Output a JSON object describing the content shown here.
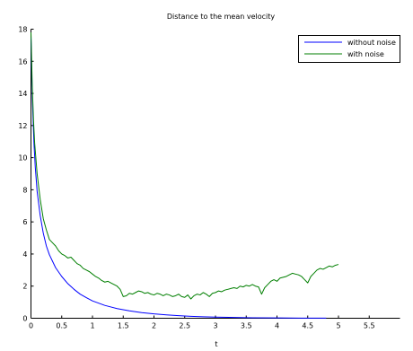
{
  "chart_data": {
    "type": "line",
    "title": "Distance to the mean velocity",
    "xlabel": "t",
    "ylabel": "",
    "xlim": [
      0,
      6
    ],
    "ylim": [
      0,
      18
    ],
    "x_ticks": [
      0,
      0.5,
      1,
      1.5,
      2,
      2.5,
      3,
      3.5,
      4,
      4.5,
      5,
      5.5
    ],
    "y_ticks": [
      0,
      2,
      4,
      6,
      8,
      10,
      12,
      14,
      16,
      18
    ],
    "grid": false,
    "legend_position": "top-right",
    "series": [
      {
        "name": "without noise",
        "color": "#0000ff",
        "x": [
          0.0,
          0.01,
          0.02,
          0.03,
          0.05,
          0.07,
          0.1,
          0.15,
          0.2,
          0.25,
          0.3,
          0.4,
          0.5,
          0.6,
          0.7,
          0.8,
          0.9,
          1.0,
          1.2,
          1.4,
          1.6,
          1.8,
          2.0,
          2.2,
          2.4,
          2.6,
          2.8,
          3.0,
          3.3,
          3.6,
          4.0,
          4.4,
          4.8
        ],
        "values": [
          17.5,
          15.6,
          14.1,
          12.8,
          10.8,
          9.4,
          7.9,
          6.4,
          5.3,
          4.5,
          3.95,
          3.15,
          2.6,
          2.15,
          1.8,
          1.5,
          1.28,
          1.08,
          0.8,
          0.6,
          0.46,
          0.35,
          0.27,
          0.21,
          0.16,
          0.12,
          0.09,
          0.07,
          0.05,
          0.03,
          0.02,
          0.01,
          0.01
        ]
      },
      {
        "name": "with noise",
        "color": "#007f00",
        "x": [
          0.0,
          0.01,
          0.02,
          0.04,
          0.06,
          0.1,
          0.15,
          0.2,
          0.25,
          0.3,
          0.35,
          0.4,
          0.45,
          0.5,
          0.55,
          0.6,
          0.65,
          0.7,
          0.75,
          0.8,
          0.85,
          0.9,
          0.95,
          1.0,
          1.05,
          1.1,
          1.15,
          1.2,
          1.25,
          1.3,
          1.35,
          1.4,
          1.45,
          1.5,
          1.55,
          1.6,
          1.65,
          1.7,
          1.75,
          1.8,
          1.85,
          1.9,
          1.95,
          2.0,
          2.05,
          2.1,
          2.15,
          2.2,
          2.25,
          2.3,
          2.35,
          2.4,
          2.45,
          2.5,
          2.55,
          2.6,
          2.65,
          2.7,
          2.75,
          2.8,
          2.85,
          2.9,
          2.95,
          3.0,
          3.05,
          3.1,
          3.15,
          3.2,
          3.25,
          3.3,
          3.35,
          3.4,
          3.45,
          3.5,
          3.55,
          3.6,
          3.65,
          3.7,
          3.75,
          3.8,
          3.85,
          3.9,
          3.95,
          4.0,
          4.05,
          4.1,
          4.15,
          4.2,
          4.25,
          4.3,
          4.35,
          4.4,
          4.45,
          4.5,
          4.55,
          4.6,
          4.65,
          4.7,
          4.75,
          4.8,
          4.85,
          4.9,
          4.95,
          5.0
        ],
        "values": [
          17.8,
          16.2,
          14.6,
          12.4,
          10.9,
          9.0,
          7.4,
          6.2,
          5.5,
          4.9,
          4.7,
          4.5,
          4.2,
          4.0,
          3.9,
          3.75,
          3.8,
          3.6,
          3.4,
          3.3,
          3.1,
          3.0,
          2.9,
          2.75,
          2.6,
          2.5,
          2.35,
          2.25,
          2.3,
          2.2,
          2.1,
          2.0,
          1.8,
          1.35,
          1.4,
          1.55,
          1.5,
          1.6,
          1.7,
          1.65,
          1.55,
          1.6,
          1.5,
          1.45,
          1.55,
          1.5,
          1.4,
          1.5,
          1.45,
          1.35,
          1.4,
          1.5,
          1.35,
          1.3,
          1.45,
          1.2,
          1.4,
          1.5,
          1.45,
          1.6,
          1.5,
          1.35,
          1.55,
          1.6,
          1.7,
          1.65,
          1.75,
          1.8,
          1.85,
          1.9,
          1.85,
          2.0,
          1.95,
          2.05,
          2.0,
          2.1,
          2.0,
          1.95,
          1.5,
          1.9,
          2.1,
          2.3,
          2.4,
          2.3,
          2.5,
          2.55,
          2.6,
          2.7,
          2.8,
          2.75,
          2.7,
          2.6,
          2.4,
          2.2,
          2.6,
          2.8,
          3.0,
          3.1,
          3.05,
          3.15,
          3.25,
          3.2,
          3.3,
          3.35
        ]
      }
    ]
  }
}
